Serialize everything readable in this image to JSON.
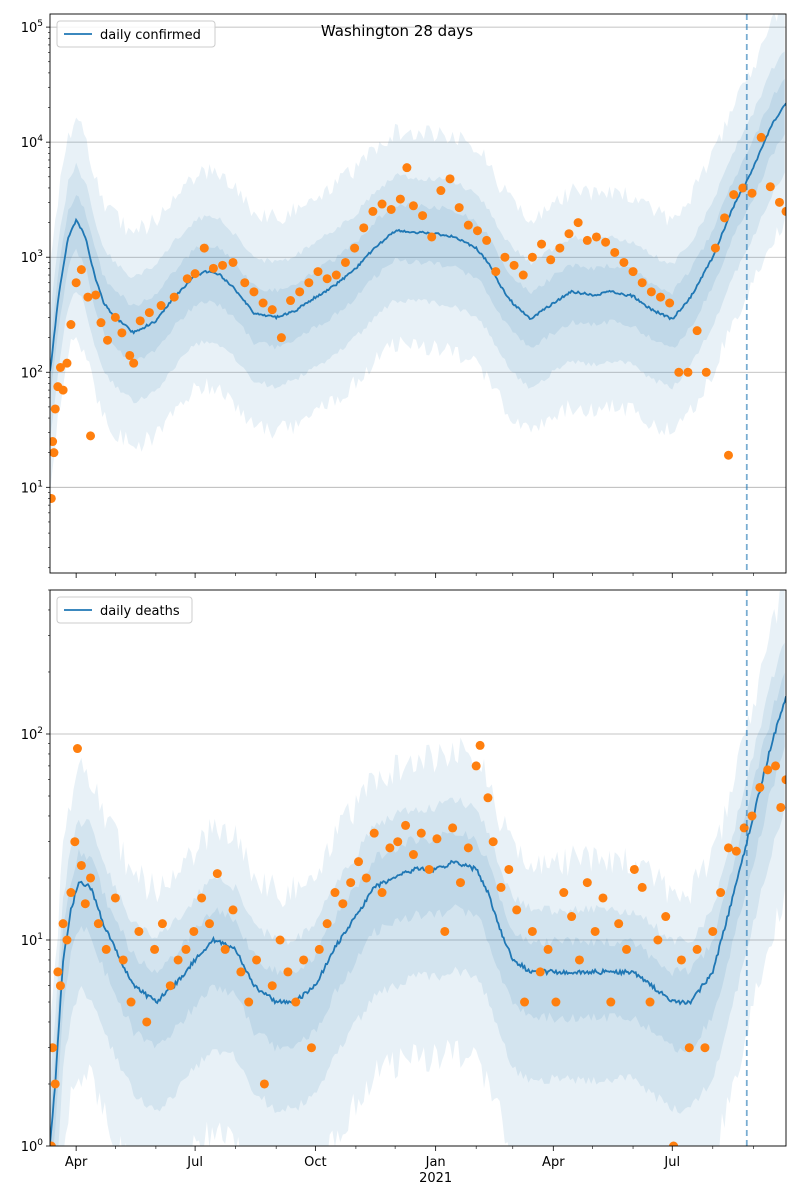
{
  "figure": {
    "title": "Washington 28 days"
  },
  "colors": {
    "model": "#1f77b4",
    "observed": "#ff7f0e",
    "band": "#1f77b4",
    "grid": "#b0b0b0"
  },
  "x_axis": {
    "ticks": [
      {
        "date": "2020-04-01",
        "label": "Apr"
      },
      {
        "date": "2020-07-01",
        "label": "Jul"
      },
      {
        "date": "2020-10-01",
        "label": "Oct"
      },
      {
        "date": "2021-01-01",
        "label": "Jan",
        "sublabel": "2021"
      },
      {
        "date": "2021-04-01",
        "label": "Apr"
      },
      {
        "date": "2021-07-01",
        "label": "Jul"
      }
    ],
    "minor_ticks": [
      "2020-05-01",
      "2020-06-01",
      "2020-08-01",
      "2020-09-01",
      "2020-11-01",
      "2020-12-01",
      "2021-02-01",
      "2021-03-01",
      "2021-05-01",
      "2021-06-01",
      "2021-08-01",
      "2021-09-01"
    ]
  },
  "chart_data": [
    {
      "type": "line",
      "legend": "daily confirmed",
      "legend_position": "top-left",
      "yscale": "log",
      "grid": "y",
      "xlim": [
        "2020-03-12",
        "2021-09-26"
      ],
      "ylim": [
        1.8,
        130000
      ],
      "yticks": [
        {
          "value": 10,
          "base": "10",
          "exp": "1"
        },
        {
          "value": 100,
          "base": "10",
          "exp": "2"
        },
        {
          "value": 1000,
          "base": "10",
          "exp": "3"
        },
        {
          "value": 10000,
          "base": "10",
          "exp": "4"
        },
        {
          "value": 100000,
          "base": "10",
          "exp": "5"
        }
      ],
      "forecast_start": "2021-08-27",
      "model_series": [
        [
          "2020-03-12",
          100
        ],
        [
          "2020-03-19",
          500
        ],
        [
          "2020-03-26",
          1500
        ],
        [
          "2020-04-01",
          2100
        ],
        [
          "2020-04-08",
          1500
        ],
        [
          "2020-04-15",
          700
        ],
        [
          "2020-04-22",
          400
        ],
        [
          "2020-05-01",
          300
        ],
        [
          "2020-05-15",
          220
        ],
        [
          "2020-06-01",
          280
        ],
        [
          "2020-06-15",
          450
        ],
        [
          "2020-07-01",
          700
        ],
        [
          "2020-07-10",
          750
        ],
        [
          "2020-07-20",
          700
        ],
        [
          "2020-08-01",
          520
        ],
        [
          "2020-08-15",
          330
        ],
        [
          "2020-09-01",
          300
        ],
        [
          "2020-09-15",
          340
        ],
        [
          "2020-10-01",
          450
        ],
        [
          "2020-10-15",
          560
        ],
        [
          "2020-11-01",
          800
        ],
        [
          "2020-11-15",
          1200
        ],
        [
          "2020-12-01",
          1700
        ],
        [
          "2020-12-15",
          1650
        ],
        [
          "2021-01-01",
          1600
        ],
        [
          "2021-01-15",
          1500
        ],
        [
          "2021-02-01",
          1200
        ],
        [
          "2021-02-10",
          900
        ],
        [
          "2021-02-20",
          550
        ],
        [
          "2021-03-01",
          400
        ],
        [
          "2021-03-15",
          290
        ],
        [
          "2021-04-01",
          400
        ],
        [
          "2021-04-15",
          500
        ],
        [
          "2021-05-01",
          470
        ],
        [
          "2021-05-15",
          500
        ],
        [
          "2021-06-01",
          460
        ],
        [
          "2021-06-15",
          350
        ],
        [
          "2021-07-01",
          290
        ],
        [
          "2021-07-15",
          450
        ],
        [
          "2021-08-01",
          1000
        ],
        [
          "2021-08-15",
          2500
        ],
        [
          "2021-09-01",
          6000
        ],
        [
          "2021-09-15",
          14000
        ],
        [
          "2021-09-26",
          22000
        ]
      ],
      "band_multipliers": [
        [
          0.1,
          7.5
        ],
        [
          0.25,
          3.0
        ],
        [
          0.55,
          1.7
        ]
      ],
      "observed": [
        [
          "2020-03-13",
          8
        ],
        [
          "2020-03-14",
          25
        ],
        [
          "2020-03-15",
          20
        ],
        [
          "2020-03-16",
          48
        ],
        [
          "2020-03-18",
          75
        ],
        [
          "2020-03-20",
          110
        ],
        [
          "2020-03-22",
          70
        ],
        [
          "2020-03-25",
          120
        ],
        [
          "2020-03-28",
          260
        ],
        [
          "2020-04-01",
          600
        ],
        [
          "2020-04-05",
          780
        ],
        [
          "2020-04-10",
          450
        ],
        [
          "2020-04-12",
          28
        ],
        [
          "2020-04-16",
          470
        ],
        [
          "2020-04-20",
          270
        ],
        [
          "2020-04-25",
          190
        ],
        [
          "2020-05-01",
          300
        ],
        [
          "2020-05-06",
          220
        ],
        [
          "2020-05-12",
          140
        ],
        [
          "2020-05-15",
          120
        ],
        [
          "2020-05-20",
          280
        ],
        [
          "2020-05-27",
          330
        ],
        [
          "2020-06-05",
          380
        ],
        [
          "2020-06-15",
          450
        ],
        [
          "2020-06-25",
          650
        ],
        [
          "2020-07-01",
          720
        ],
        [
          "2020-07-08",
          1200
        ],
        [
          "2020-07-15",
          800
        ],
        [
          "2020-07-22",
          850
        ],
        [
          "2020-07-30",
          900
        ],
        [
          "2020-08-08",
          600
        ],
        [
          "2020-08-15",
          500
        ],
        [
          "2020-08-22",
          400
        ],
        [
          "2020-08-29",
          350
        ],
        [
          "2020-09-05",
          200
        ],
        [
          "2020-09-12",
          420
        ],
        [
          "2020-09-19",
          500
        ],
        [
          "2020-09-26",
          600
        ],
        [
          "2020-10-03",
          750
        ],
        [
          "2020-10-10",
          650
        ],
        [
          "2020-10-17",
          700
        ],
        [
          "2020-10-24",
          900
        ],
        [
          "2020-10-31",
          1200
        ],
        [
          "2020-11-07",
          1800
        ],
        [
          "2020-11-14",
          2500
        ],
        [
          "2020-11-21",
          2900
        ],
        [
          "2020-11-28",
          2600
        ],
        [
          "2020-12-05",
          3200
        ],
        [
          "2020-12-10",
          6000
        ],
        [
          "2020-12-15",
          2800
        ],
        [
          "2020-12-22",
          2300
        ],
        [
          "2020-12-29",
          1500
        ],
        [
          "2021-01-05",
          3800
        ],
        [
          "2021-01-12",
          4800
        ],
        [
          "2021-01-19",
          2700
        ],
        [
          "2021-01-26",
          1900
        ],
        [
          "2021-02-02",
          1700
        ],
        [
          "2021-02-09",
          1400
        ],
        [
          "2021-02-16",
          750
        ],
        [
          "2021-02-23",
          1000
        ],
        [
          "2021-03-02",
          850
        ],
        [
          "2021-03-09",
          700
        ],
        [
          "2021-03-16",
          1000
        ],
        [
          "2021-03-23",
          1300
        ],
        [
          "2021-03-30",
          950
        ],
        [
          "2021-04-06",
          1200
        ],
        [
          "2021-04-13",
          1600
        ],
        [
          "2021-04-20",
          2000
        ],
        [
          "2021-04-27",
          1400
        ],
        [
          "2021-05-04",
          1500
        ],
        [
          "2021-05-11",
          1350
        ],
        [
          "2021-05-18",
          1100
        ],
        [
          "2021-05-25",
          900
        ],
        [
          "2021-06-01",
          750
        ],
        [
          "2021-06-08",
          600
        ],
        [
          "2021-06-15",
          500
        ],
        [
          "2021-06-22",
          450
        ],
        [
          "2021-06-29",
          400
        ],
        [
          "2021-07-06",
          100
        ],
        [
          "2021-07-13",
          100
        ],
        [
          "2021-07-20",
          230
        ],
        [
          "2021-07-27",
          100
        ],
        [
          "2021-08-03",
          1200
        ],
        [
          "2021-08-10",
          2200
        ],
        [
          "2021-08-13",
          19
        ],
        [
          "2021-08-17",
          3500
        ],
        [
          "2021-08-24",
          4000
        ],
        [
          "2021-08-31",
          3600
        ],
        [
          "2021-09-07",
          11000
        ],
        [
          "2021-09-14",
          4100
        ],
        [
          "2021-09-21",
          3000
        ],
        [
          "2021-09-26",
          2500
        ]
      ]
    },
    {
      "type": "line",
      "legend": "daily deaths",
      "legend_position": "top-left",
      "yscale": "log",
      "grid": "y",
      "xlim": [
        "2020-03-12",
        "2021-09-26"
      ],
      "ylim": [
        1,
        500
      ],
      "yticks": [
        {
          "value": 1,
          "base": "10",
          "exp": "0"
        },
        {
          "value": 10,
          "base": "10",
          "exp": "1"
        },
        {
          "value": 100,
          "base": "10",
          "exp": "2"
        }
      ],
      "forecast_start": "2021-08-27",
      "model_series": [
        [
          "2020-03-12",
          1
        ],
        [
          "2020-03-16",
          2
        ],
        [
          "2020-03-22",
          8
        ],
        [
          "2020-03-28",
          14
        ],
        [
          "2020-04-03",
          19
        ],
        [
          "2020-04-12",
          18
        ],
        [
          "2020-04-22",
          12
        ],
        [
          "2020-05-01",
          9
        ],
        [
          "2020-05-15",
          6
        ],
        [
          "2020-06-01",
          5
        ],
        [
          "2020-06-15",
          6
        ],
        [
          "2020-07-01",
          8
        ],
        [
          "2020-07-15",
          10
        ],
        [
          "2020-08-01",
          9
        ],
        [
          "2020-08-15",
          6
        ],
        [
          "2020-09-01",
          5
        ],
        [
          "2020-09-15",
          5
        ],
        [
          "2020-10-01",
          6
        ],
        [
          "2020-10-15",
          9
        ],
        [
          "2020-11-01",
          13
        ],
        [
          "2020-11-15",
          18
        ],
        [
          "2020-12-01",
          20
        ],
        [
          "2020-12-15",
          22
        ],
        [
          "2021-01-01",
          22
        ],
        [
          "2021-01-15",
          24
        ],
        [
          "2021-02-01",
          22
        ],
        [
          "2021-02-10",
          17
        ],
        [
          "2021-02-20",
          11
        ],
        [
          "2021-03-01",
          8
        ],
        [
          "2021-03-15",
          7
        ],
        [
          "2021-04-01",
          7
        ],
        [
          "2021-04-15",
          7
        ],
        [
          "2021-05-01",
          7
        ],
        [
          "2021-05-15",
          7
        ],
        [
          "2021-06-01",
          7
        ],
        [
          "2021-06-15",
          6
        ],
        [
          "2021-07-01",
          5
        ],
        [
          "2021-07-15",
          5
        ],
        [
          "2021-08-01",
          7
        ],
        [
          "2021-08-15",
          15
        ],
        [
          "2021-09-01",
          40
        ],
        [
          "2021-09-15",
          90
        ],
        [
          "2021-09-26",
          150
        ]
      ],
      "band_multipliers": [
        [
          0.12,
          3.5
        ],
        [
          0.3,
          2.0
        ],
        [
          0.6,
          1.4
        ]
      ],
      "observed": [
        [
          "2020-03-13",
          1
        ],
        [
          "2020-03-14",
          3
        ],
        [
          "2020-03-16",
          2
        ],
        [
          "2020-03-18",
          7
        ],
        [
          "2020-03-20",
          6
        ],
        [
          "2020-03-22",
          12
        ],
        [
          "2020-03-25",
          10
        ],
        [
          "2020-03-28",
          17
        ],
        [
          "2020-03-31",
          30
        ],
        [
          "2020-04-02",
          85
        ],
        [
          "2020-04-05",
          23
        ],
        [
          "2020-04-08",
          15
        ],
        [
          "2020-04-12",
          20
        ],
        [
          "2020-04-18",
          12
        ],
        [
          "2020-04-24",
          9
        ],
        [
          "2020-05-01",
          16
        ],
        [
          "2020-05-07",
          8
        ],
        [
          "2020-05-13",
          5
        ],
        [
          "2020-05-19",
          11
        ],
        [
          "2020-05-25",
          4
        ],
        [
          "2020-05-31",
          9
        ],
        [
          "2020-06-06",
          12
        ],
        [
          "2020-06-12",
          6
        ],
        [
          "2020-06-18",
          8
        ],
        [
          "2020-06-24",
          9
        ],
        [
          "2020-06-30",
          11
        ],
        [
          "2020-07-06",
          16
        ],
        [
          "2020-07-12",
          12
        ],
        [
          "2020-07-18",
          21
        ],
        [
          "2020-07-24",
          9
        ],
        [
          "2020-07-30",
          14
        ],
        [
          "2020-08-05",
          7
        ],
        [
          "2020-08-11",
          5
        ],
        [
          "2020-08-17",
          8
        ],
        [
          "2020-08-23",
          2
        ],
        [
          "2020-08-29",
          6
        ],
        [
          "2020-09-04",
          10
        ],
        [
          "2020-09-10",
          7
        ],
        [
          "2020-09-16",
          5
        ],
        [
          "2020-09-22",
          8
        ],
        [
          "2020-09-28",
          3
        ],
        [
          "2020-10-04",
          9
        ],
        [
          "2020-10-10",
          12
        ],
        [
          "2020-10-16",
          17
        ],
        [
          "2020-10-22",
          15
        ],
        [
          "2020-10-28",
          19
        ],
        [
          "2020-11-03",
          24
        ],
        [
          "2020-11-09",
          20
        ],
        [
          "2020-11-15",
          33
        ],
        [
          "2020-11-21",
          17
        ],
        [
          "2020-11-27",
          28
        ],
        [
          "2020-12-03",
          30
        ],
        [
          "2020-12-09",
          36
        ],
        [
          "2020-12-15",
          26
        ],
        [
          "2020-12-21",
          33
        ],
        [
          "2020-12-27",
          22
        ],
        [
          "2021-01-02",
          31
        ],
        [
          "2021-01-08",
          11
        ],
        [
          "2021-01-14",
          35
        ],
        [
          "2021-01-20",
          19
        ],
        [
          "2021-01-26",
          28
        ],
        [
          "2021-02-01",
          70
        ],
        [
          "2021-02-04",
          88
        ],
        [
          "2021-02-10",
          49
        ],
        [
          "2021-02-14",
          30
        ],
        [
          "2021-02-20",
          18
        ],
        [
          "2021-02-26",
          22
        ],
        [
          "2021-03-04",
          14
        ],
        [
          "2021-03-10",
          5
        ],
        [
          "2021-03-16",
          11
        ],
        [
          "2021-03-22",
          7
        ],
        [
          "2021-03-28",
          9
        ],
        [
          "2021-04-03",
          5
        ],
        [
          "2021-04-09",
          17
        ],
        [
          "2021-04-15",
          13
        ],
        [
          "2021-04-21",
          8
        ],
        [
          "2021-04-27",
          19
        ],
        [
          "2021-05-03",
          11
        ],
        [
          "2021-05-09",
          16
        ],
        [
          "2021-05-15",
          5
        ],
        [
          "2021-05-21",
          12
        ],
        [
          "2021-05-27",
          9
        ],
        [
          "2021-06-02",
          22
        ],
        [
          "2021-06-08",
          18
        ],
        [
          "2021-06-14",
          5
        ],
        [
          "2021-06-20",
          10
        ],
        [
          "2021-06-26",
          13
        ],
        [
          "2021-07-02",
          1
        ],
        [
          "2021-07-08",
          8
        ],
        [
          "2021-07-14",
          3
        ],
        [
          "2021-07-20",
          9
        ],
        [
          "2021-07-26",
          3
        ],
        [
          "2021-08-01",
          11
        ],
        [
          "2021-08-07",
          17
        ],
        [
          "2021-08-13",
          28
        ],
        [
          "2021-08-19",
          27
        ],
        [
          "2021-08-25",
          35
        ],
        [
          "2021-08-31",
          40
        ],
        [
          "2021-09-06",
          55
        ],
        [
          "2021-09-12",
          67
        ],
        [
          "2021-09-18",
          70
        ],
        [
          "2021-09-22",
          44
        ],
        [
          "2021-09-26",
          60
        ]
      ]
    }
  ]
}
